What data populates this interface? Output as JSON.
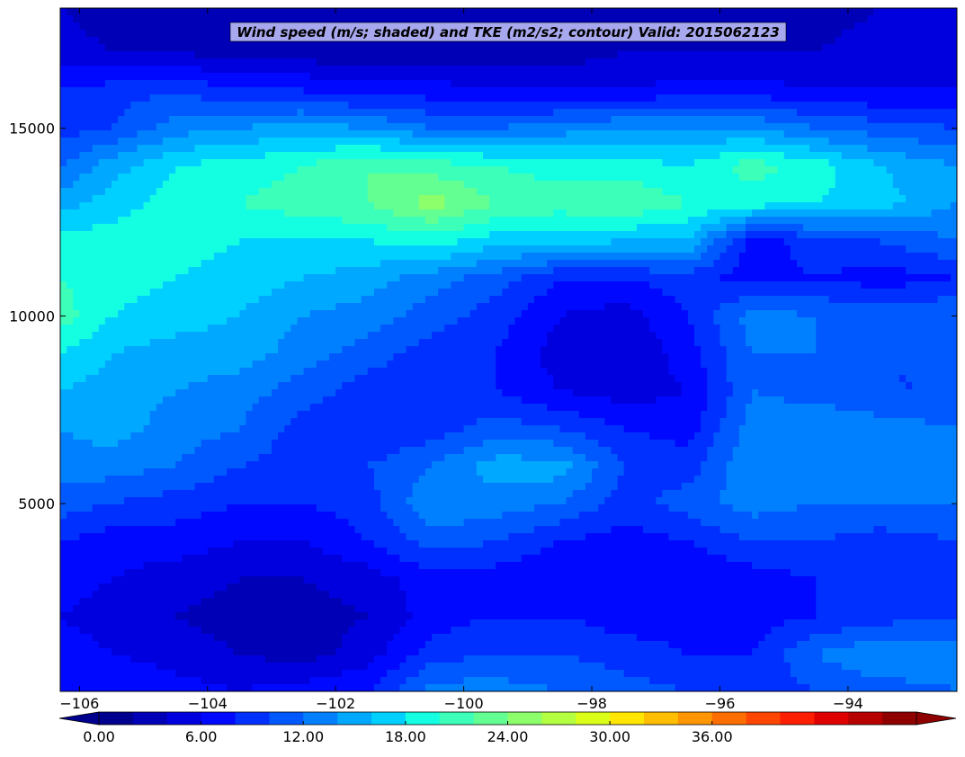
{
  "chart_data": {
    "type": "heatmap",
    "title": "Wind speed (m/s; shaded) and TKE (m2/s2; contour) Valid: 2015062123",
    "xlabel": "",
    "ylabel": "",
    "xlim": [
      -106.3,
      -92.3
    ],
    "ylim": [
      0,
      18200
    ],
    "x_ticks": [
      -106,
      -104,
      -102,
      -100,
      -98,
      -96,
      -94
    ],
    "x_tick_labels": [
      "−106",
      "−104",
      "−102",
      "−100",
      "−98",
      "−96",
      "−94"
    ],
    "y_ticks": [
      5000,
      10000,
      15000
    ],
    "y_tick_labels": [
      "5000",
      "10000",
      "15000"
    ],
    "grid": false,
    "colormap": "jet",
    "colorbar": {
      "orientation": "horizontal",
      "location": "bottom",
      "extend": "both",
      "levels": [
        0,
        2,
        4,
        6,
        8,
        10,
        12,
        14,
        16,
        18,
        20,
        22,
        24,
        26,
        28,
        30,
        32,
        34,
        36,
        38,
        40
      ],
      "tick_values": [
        0,
        6,
        12,
        18,
        24,
        30,
        36
      ],
      "tick_labels": [
        "0.00",
        "6.00",
        "12.00",
        "18.00",
        "24.00",
        "30.00",
        "36.00"
      ],
      "colors": [
        "#00008f",
        "#0000b7",
        "#0000df",
        "#0008ff",
        "#0030ff",
        "#0058ff",
        "#0080ff",
        "#00a8ff",
        "#00d0ff",
        "#14ffe2",
        "#3cffba",
        "#64ff92",
        "#8cff6a",
        "#b4ff42",
        "#dcff1a",
        "#ffe600",
        "#ffbe00",
        "#ff9600",
        "#ff6e00",
        "#ff4600",
        "#ff1e00",
        "#df0000",
        "#b70000",
        "#8f0000"
      ],
      "under_color": "#00008f",
      "over_color": "#8f0000"
    },
    "wind_speed_field": {
      "description_units": "m/s",
      "x": [
        -106.3,
        -105.5,
        -104.5,
        -103.5,
        -102.5,
        -101.5,
        -100.5,
        -99.5,
        -98.5,
        -97.5,
        -96.5,
        -95.5,
        -94.5,
        -93.5,
        -92.3
      ],
      "y": [
        0,
        1000,
        2000,
        3000,
        4000,
        5000,
        6000,
        7000,
        8000,
        9000,
        10000,
        11000,
        12000,
        13000,
        14000,
        15000,
        16000,
        17000,
        18200
      ],
      "values": [
        [
          7,
          8,
          7,
          6,
          7,
          8,
          13,
          13,
          12,
          11,
          10,
          9,
          10,
          11,
          12
        ],
        [
          7,
          6,
          5,
          4,
          3,
          5,
          9,
          10,
          10,
          9,
          8,
          8,
          12,
          14,
          13
        ],
        [
          6,
          5,
          4,
          3,
          3,
          4,
          7,
          8,
          8,
          7,
          7,
          7,
          8,
          9,
          10
        ],
        [
          7,
          6,
          5,
          4,
          4,
          5,
          7,
          7,
          6,
          6,
          6,
          7,
          8,
          8,
          9
        ],
        [
          8,
          7,
          7,
          6,
          6,
          8,
          11,
          10,
          8,
          7,
          8,
          10,
          10,
          9,
          10
        ],
        [
          11,
          10,
          9,
          8,
          8,
          9,
          14,
          13,
          12,
          9,
          11,
          13,
          12,
          12,
          12
        ],
        [
          13,
          13,
          12,
          10,
          9,
          10,
          12,
          15,
          15,
          10,
          9,
          14,
          13,
          14,
          13
        ],
        [
          14,
          15,
          13,
          12,
          9,
          8,
          9,
          11,
          10,
          8,
          7,
          13,
          14,
          13,
          12
        ],
        [
          16,
          15,
          14,
          13,
          11,
          9,
          8,
          8,
          6,
          5,
          6,
          12,
          11,
          10,
          10
        ],
        [
          18,
          16,
          15,
          15,
          13,
          11,
          9,
          8,
          5,
          4,
          7,
          12,
          12,
          10,
          10
        ],
        [
          21,
          18,
          17,
          16,
          14,
          13,
          11,
          9,
          6,
          5,
          8,
          13,
          12,
          11,
          12
        ],
        [
          20,
          19,
          18,
          17,
          16,
          15,
          13,
          11,
          8,
          8,
          9,
          7,
          8,
          7,
          8
        ],
        [
          19,
          19,
          19,
          18,
          18,
          18,
          19,
          17,
          17,
          16,
          16,
          7,
          9,
          10,
          12
        ],
        [
          15,
          17,
          19,
          20,
          21,
          22,
          25,
          22,
          21,
          22,
          20,
          19,
          18,
          17,
          14
        ],
        [
          12,
          15,
          18,
          19,
          20,
          22,
          21,
          20,
          19,
          19,
          18,
          21,
          19,
          16,
          14
        ],
        [
          9,
          10,
          13,
          14,
          15,
          14,
          12,
          12,
          13,
          14,
          14,
          14,
          12,
          11,
          10
        ],
        [
          8,
          9,
          10,
          8,
          8,
          7,
          7,
          6,
          6,
          6,
          7,
          7,
          6,
          6,
          6
        ],
        [
          5,
          4,
          4,
          3,
          3,
          2,
          3,
          3,
          3,
          4,
          4,
          4,
          4,
          5,
          6
        ],
        [
          4,
          3,
          3,
          3,
          2,
          2,
          2,
          2,
          3,
          3,
          3,
          3,
          3,
          4,
          5
        ]
      ]
    }
  }
}
